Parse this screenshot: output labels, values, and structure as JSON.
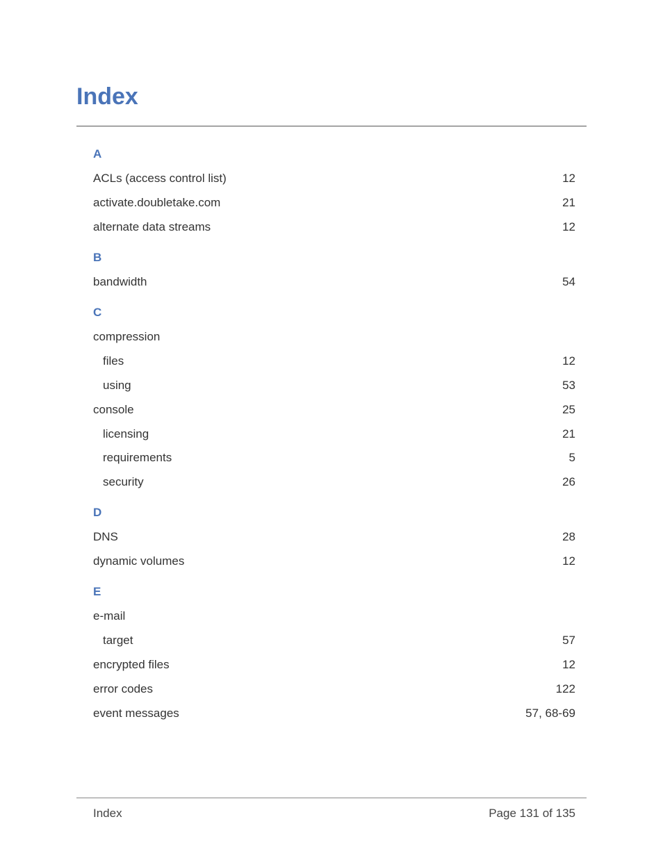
{
  "colors": {
    "title": "#4a74b8",
    "section_letter": "#4a74b8",
    "body_text": "#333333",
    "rule": "#555555",
    "footer_rule": "#888888"
  },
  "typography": {
    "title_fontsize_pt": 26,
    "section_letter_fontsize_pt": 13,
    "body_fontsize_pt": 13,
    "footer_fontsize_pt": 13,
    "font_family": "Arial"
  },
  "title": "Index",
  "sections": [
    {
      "letter": "A",
      "entries": [
        {
          "term": "ACLs (access control list)",
          "page": "12",
          "sub": false
        },
        {
          "term": "activate.doubletake.com",
          "page": "21",
          "sub": false
        },
        {
          "term": "alternate data streams",
          "page": "12",
          "sub": false
        }
      ]
    },
    {
      "letter": "B",
      "entries": [
        {
          "term": "bandwidth",
          "page": "54",
          "sub": false
        }
      ]
    },
    {
      "letter": "C",
      "entries": [
        {
          "term": "compression",
          "page": "",
          "sub": false
        },
        {
          "term": "files",
          "page": "12",
          "sub": true
        },
        {
          "term": "using",
          "page": "53",
          "sub": true
        },
        {
          "term": "console",
          "page": "25",
          "sub": false
        },
        {
          "term": "licensing",
          "page": "21",
          "sub": true
        },
        {
          "term": "requirements",
          "page": "5",
          "sub": true
        },
        {
          "term": "security",
          "page": "26",
          "sub": true
        }
      ]
    },
    {
      "letter": "D",
      "entries": [
        {
          "term": "DNS",
          "page": "28",
          "sub": false
        },
        {
          "term": "dynamic volumes",
          "page": "12",
          "sub": false
        }
      ]
    },
    {
      "letter": "E",
      "entries": [
        {
          "term": "e-mail",
          "page": "",
          "sub": false
        },
        {
          "term": "target",
          "page": "57",
          "sub": true
        },
        {
          "term": "encrypted files",
          "page": "12",
          "sub": false
        },
        {
          "term": "error codes",
          "page": "122",
          "sub": false
        },
        {
          "term": "event messages",
          "page": "57, 68-69",
          "sub": false
        }
      ]
    }
  ],
  "footer": {
    "left": "Index",
    "right": "Page 131 of 135"
  }
}
